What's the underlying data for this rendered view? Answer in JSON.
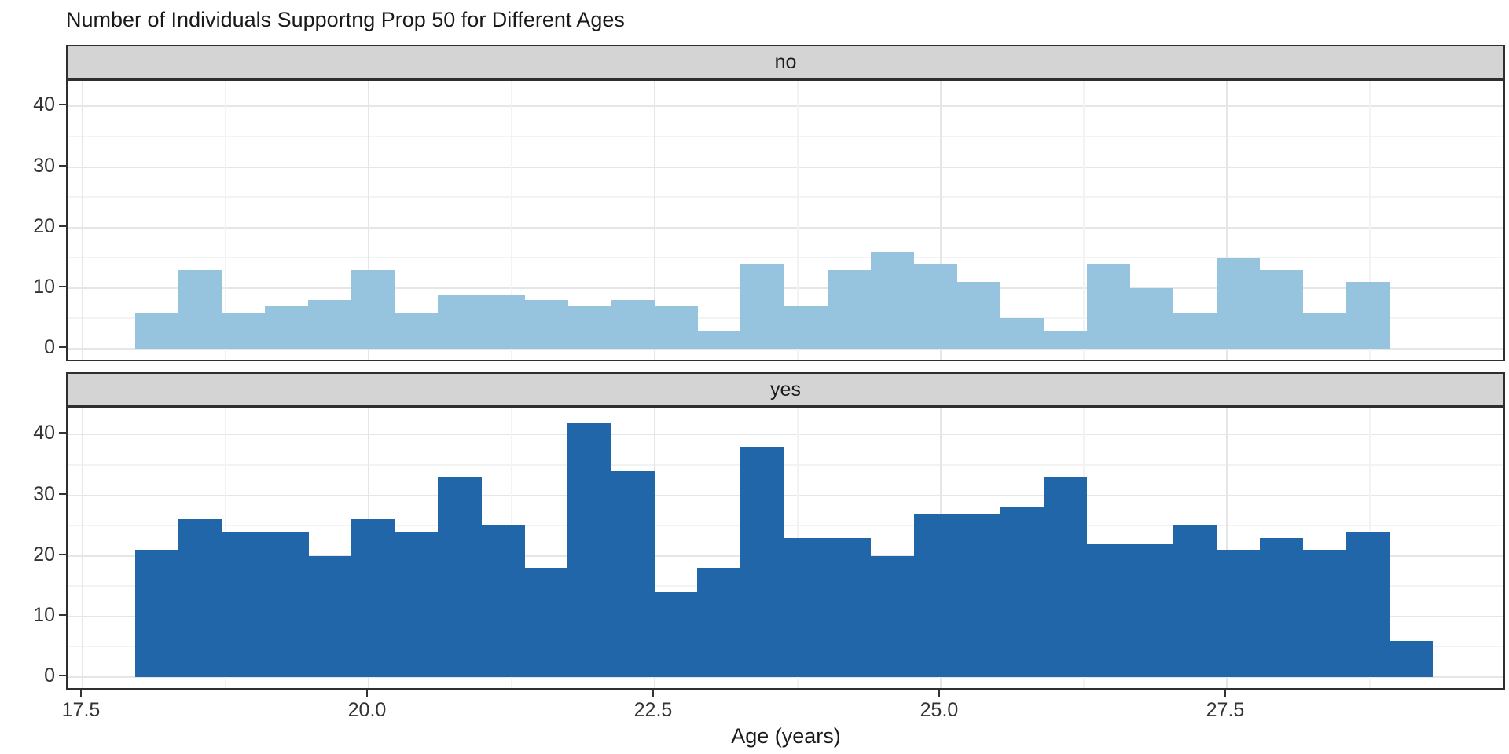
{
  "title": "Number of Individuals Supportng Prop 50 for Different Ages",
  "xlabel": "Age (years)",
  "axes": {
    "x_tick_labels": [
      "17.5",
      "20.0",
      "22.5",
      "25.0",
      "27.5"
    ],
    "x_ticks": [
      17.5,
      20.0,
      22.5,
      25.0,
      27.5
    ],
    "x_minor_ticks": [
      18.75,
      21.25,
      23.75,
      26.25,
      28.75
    ],
    "y_tick_labels": [
      "0",
      "10",
      "20",
      "30",
      "40"
    ],
    "y_ticks": [
      0,
      10,
      20,
      30,
      40
    ],
    "y_minor_ticks": [
      5,
      15,
      25,
      35
    ]
  },
  "colors": {
    "no_fill": "#96c3dd",
    "yes_fill": "#2066a8",
    "strip_bg": "#d4d4d4",
    "panel_border": "#2f2f2f",
    "grid_major": "#e6e6e6",
    "grid_minor": "#f3f3f3",
    "tick_text": "#333333",
    "title_text": "#1a1a1a"
  },
  "chart_data": {
    "type": "bar",
    "subtype": "faceted_histogram",
    "title": "Number of Individuals Supportng Prop 50 for Different Ages",
    "xlabel": "Age (years)",
    "ylabel": "",
    "bin_start": 17.96,
    "bin_width": 0.378,
    "xlim": [
      17.37,
      29.94
    ],
    "ylim": [
      0,
      44
    ],
    "grid": true,
    "legend": "none",
    "facets": [
      {
        "name": "no",
        "fill": "#96c3dd",
        "counts": [
          6,
          13,
          6,
          7,
          8,
          13,
          6,
          9,
          9,
          8,
          7,
          8,
          7,
          3,
          14,
          7,
          13,
          16,
          14,
          11,
          5,
          3,
          14,
          10,
          6,
          15,
          13,
          6,
          11
        ]
      },
      {
        "name": "yes",
        "fill": "#2066a8",
        "counts": [
          21,
          26,
          24,
          24,
          20,
          26,
          24,
          33,
          25,
          18,
          42,
          34,
          14,
          18,
          38,
          23,
          23,
          20,
          27,
          27,
          28,
          33,
          22,
          22,
          25,
          21,
          23,
          21,
          24,
          6
        ]
      }
    ]
  }
}
